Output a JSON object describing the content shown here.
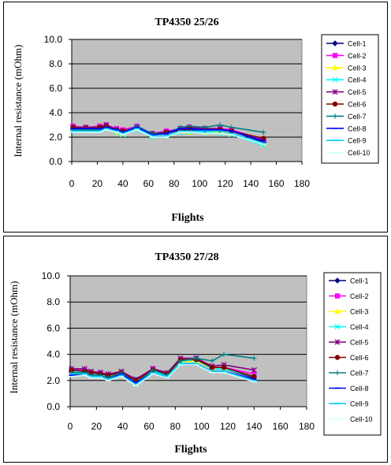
{
  "chart_data": [
    {
      "type": "line",
      "title": "TP4350 25/26",
      "xlabel": "Flights",
      "ylabel": "Internal resistance (mOhm)",
      "xlim": [
        0,
        180
      ],
      "ylim": [
        0,
        10
      ],
      "xticks": [
        "0",
        "20",
        "40",
        "60",
        "80",
        "100",
        "120",
        "140",
        "160",
        "180"
      ],
      "yticks": [
        "0.0",
        "2.0",
        "4.0",
        "6.0",
        "8.0",
        "10.0"
      ],
      "grid": "horizontal",
      "legend": "right",
      "plot_background": "#c0c0c0",
      "x": [
        1,
        11,
        22,
        27,
        35,
        40,
        51,
        63,
        74,
        85,
        92,
        104,
        116,
        125,
        150
      ],
      "series": [
        {
          "name": "Cell-1",
          "color": "#000080",
          "marker": "diamond",
          "values": [
            2.7,
            2.7,
            2.7,
            2.9,
            2.6,
            2.4,
            2.8,
            2.2,
            2.3,
            2.6,
            2.6,
            2.6,
            2.6,
            2.5,
            1.6
          ]
        },
        {
          "name": "Cell-2",
          "color": "#ff00ff",
          "marker": "square",
          "values": [
            2.9,
            2.8,
            2.9,
            3.0,
            2.7,
            2.6,
            2.9,
            2.3,
            2.5,
            2.7,
            2.8,
            2.7,
            2.7,
            2.6,
            1.8
          ]
        },
        {
          "name": "Cell-3",
          "color": "#ffff00",
          "marker": "triangle",
          "values": [
            2.6,
            2.6,
            2.6,
            2.8,
            2.4,
            2.3,
            2.7,
            2.1,
            2.1,
            2.5,
            2.4,
            2.4,
            2.4,
            2.3,
            1.4
          ]
        },
        {
          "name": "Cell-4",
          "color": "#00ffff",
          "marker": "x",
          "values": [
            2.5,
            2.5,
            2.5,
            2.7,
            2.4,
            2.2,
            2.6,
            2.0,
            2.1,
            2.4,
            2.4,
            2.4,
            2.3,
            2.2,
            1.3
          ]
        },
        {
          "name": "Cell-5",
          "color": "#800080",
          "marker": "star",
          "values": [
            2.8,
            2.8,
            2.8,
            3.0,
            2.6,
            2.5,
            2.8,
            2.2,
            2.4,
            2.7,
            2.8,
            2.7,
            2.7,
            2.5,
            1.7
          ]
        },
        {
          "name": "Cell-6",
          "color": "#800000",
          "marker": "circle",
          "values": [
            2.8,
            2.7,
            2.8,
            2.9,
            2.6,
            2.5,
            2.8,
            2.3,
            2.4,
            2.6,
            2.7,
            2.6,
            2.6,
            2.5,
            1.9
          ]
        },
        {
          "name": "Cell-7",
          "color": "#008080",
          "marker": "plus",
          "values": [
            2.6,
            2.6,
            2.6,
            2.8,
            2.6,
            2.4,
            2.9,
            2.3,
            2.3,
            2.8,
            2.9,
            2.8,
            3.0,
            2.8,
            2.4
          ]
        },
        {
          "name": "Cell-8",
          "color": "#0000ff",
          "marker": "dash",
          "values": [
            2.7,
            2.7,
            2.7,
            2.8,
            2.6,
            2.4,
            2.8,
            2.2,
            2.3,
            2.7,
            2.7,
            2.6,
            2.6,
            2.5,
            1.7
          ]
        },
        {
          "name": "Cell-9",
          "color": "#00ccff",
          "marker": "dash",
          "values": [
            2.5,
            2.5,
            2.5,
            2.7,
            2.5,
            2.3,
            2.7,
            2.1,
            2.1,
            2.5,
            2.5,
            2.5,
            2.5,
            2.3,
            1.5
          ]
        },
        {
          "name": "Cell-10",
          "color": "#ccffff",
          "marker": "dash",
          "values": [
            2.4,
            2.4,
            2.4,
            2.6,
            2.4,
            2.2,
            2.6,
            2.0,
            2.0,
            2.4,
            2.4,
            2.3,
            2.3,
            2.2,
            1.4
          ]
        }
      ]
    },
    {
      "type": "line",
      "title": "TP4350 27/28",
      "xlabel": "Flights",
      "ylabel": "Internal resistance (mOhm)",
      "xlim": [
        0,
        180
      ],
      "ylim": [
        0,
        10
      ],
      "xticks": [
        "0",
        "20",
        "40",
        "60",
        "80",
        "100",
        "120",
        "140",
        "160",
        "180"
      ],
      "yticks": [
        "0.0",
        "2.0",
        "4.0",
        "6.0",
        "8.0",
        "10.0"
      ],
      "grid": "horizontal",
      "legend": "right",
      "plot_background": "#c0c0c0",
      "x": [
        1,
        11,
        16,
        23,
        29,
        39,
        50,
        63,
        74,
        84,
        96,
        108,
        117,
        140
      ],
      "series": [
        {
          "name": "Cell-1",
          "color": "#000080",
          "marker": "diamond",
          "values": [
            2.7,
            2.7,
            2.5,
            2.5,
            2.3,
            2.6,
            1.9,
            2.8,
            2.4,
            3.5,
            3.5,
            2.9,
            2.9,
            2.2
          ]
        },
        {
          "name": "Cell-2",
          "color": "#ff00ff",
          "marker": "square",
          "values": [
            2.8,
            2.8,
            2.6,
            2.6,
            2.4,
            2.6,
            2.0,
            2.9,
            2.5,
            3.6,
            3.7,
            3.0,
            3.0,
            2.5
          ]
        },
        {
          "name": "Cell-3",
          "color": "#ffff00",
          "marker": "triangle",
          "values": [
            2.6,
            2.6,
            2.4,
            2.4,
            2.2,
            2.5,
            1.8,
            2.7,
            2.4,
            3.4,
            3.5,
            2.9,
            2.9,
            2.3
          ]
        },
        {
          "name": "Cell-4",
          "color": "#00ffff",
          "marker": "x",
          "values": [
            2.7,
            2.7,
            2.5,
            2.4,
            2.3,
            2.5,
            1.9,
            2.7,
            2.4,
            3.5,
            3.6,
            2.9,
            2.9,
            2.3
          ]
        },
        {
          "name": "Cell-5",
          "color": "#800080",
          "marker": "star",
          "values": [
            2.9,
            2.9,
            2.7,
            2.6,
            2.5,
            2.7,
            2.1,
            2.9,
            2.6,
            3.7,
            3.7,
            3.1,
            3.2,
            2.8
          ]
        },
        {
          "name": "Cell-6",
          "color": "#800000",
          "marker": "circle",
          "values": [
            2.8,
            2.7,
            2.6,
            2.5,
            2.4,
            2.6,
            2.0,
            2.8,
            2.5,
            3.6,
            3.6,
            3.0,
            3.0,
            2.3
          ]
        },
        {
          "name": "Cell-7",
          "color": "#008080",
          "marker": "plus",
          "values": [
            2.6,
            2.6,
            2.4,
            2.4,
            2.2,
            2.6,
            1.8,
            2.8,
            2.4,
            3.5,
            3.7,
            3.5,
            4.0,
            3.7
          ]
        },
        {
          "name": "Cell-8",
          "color": "#0000ff",
          "marker": "dash",
          "values": [
            2.4,
            2.5,
            2.3,
            2.3,
            2.1,
            2.5,
            1.8,
            2.6,
            2.2,
            3.2,
            3.2,
            2.7,
            2.7,
            2.1
          ]
        },
        {
          "name": "Cell-9",
          "color": "#00ccff",
          "marker": "dash",
          "values": [
            2.5,
            2.5,
            2.3,
            2.3,
            2.1,
            2.4,
            1.7,
            2.6,
            2.3,
            3.3,
            3.3,
            2.7,
            2.7,
            2.0
          ]
        },
        {
          "name": "Cell-10",
          "color": "#ccffff",
          "marker": "dash",
          "values": [
            2.3,
            2.4,
            2.2,
            2.2,
            2.0,
            2.3,
            1.6,
            2.5,
            2.2,
            3.2,
            3.2,
            2.6,
            2.6,
            1.9
          ]
        }
      ]
    }
  ]
}
